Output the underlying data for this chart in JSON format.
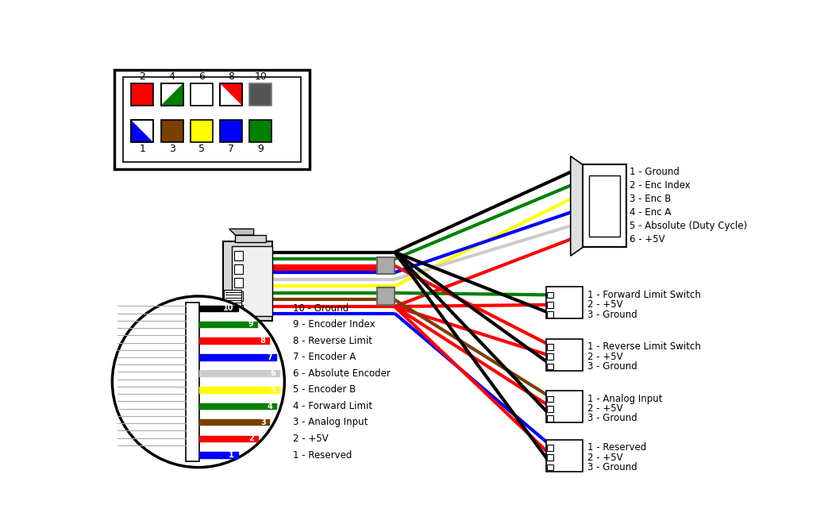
{
  "bg_color": "#ffffff",
  "legend_pins_top": [
    2,
    4,
    6,
    8,
    10
  ],
  "legend_pins_bot": [
    1,
    3,
    5,
    7,
    9
  ],
  "legend_colors_top": [
    "#ff0000",
    "diag_gw",
    "#ffffff",
    "diag_rw",
    "#444444"
  ],
  "legend_colors_bot": [
    "diag_bw",
    "#7b3f00",
    "#ffff00",
    "#0000ff",
    "#008000"
  ],
  "pin_labels": [
    "10 - Ground",
    "9 - Encoder Index",
    "8 - Reverse Limit",
    "7 - Encoder A",
    "6 - Absolute Encoder",
    "5 - Encoder B",
    "4 - Forward Limit",
    "3 - Analog Input",
    "2 - +5V",
    "1 - Reserved"
  ],
  "circle_wire_colors": [
    "#000000",
    "#008000",
    "#ff0000",
    "#0000ff",
    "#cccccc",
    "#ffff00",
    "#008000",
    "#7b3f00",
    "#ff0000",
    "#0000ff"
  ],
  "circle_wire_labels": [
    "10",
    "9",
    "8",
    "7",
    "6",
    "5",
    "4",
    "3",
    "2",
    "1"
  ],
  "encoder_connector_labels": [
    "1 - Ground",
    "2 - Enc Index",
    "3 - Enc B",
    "4 - Enc A",
    "5 - Absolute (Duty Cycle)",
    "6 - +5V"
  ],
  "encoder_wire_colors": [
    "#000000",
    "#008000",
    "#ffff00",
    "#0000ff",
    "#cccccc",
    "#ff0000"
  ],
  "conn3_labels": [
    [
      "1 - Forward Limit Switch",
      "2 - +5V",
      "3 - Ground"
    ],
    [
      "1 - Reverse Limit Switch",
      "2 - +5V",
      "3 - Ground"
    ],
    [
      "1 - Analog Input",
      "2 - +5V",
      "3 - Ground"
    ],
    [
      "1 - Reserved",
      "2 - +5V",
      "3 - Ground"
    ]
  ],
  "conn3_wire_colors": [
    [
      "#008000",
      "#ff0000",
      "#000000"
    ],
    [
      "#ff0000",
      "#ff0000",
      "#000000"
    ],
    [
      "#7b3f00",
      "#ff0000",
      "#000000"
    ],
    [
      "#0000ff",
      "#ff0000",
      "#000000"
    ]
  ]
}
